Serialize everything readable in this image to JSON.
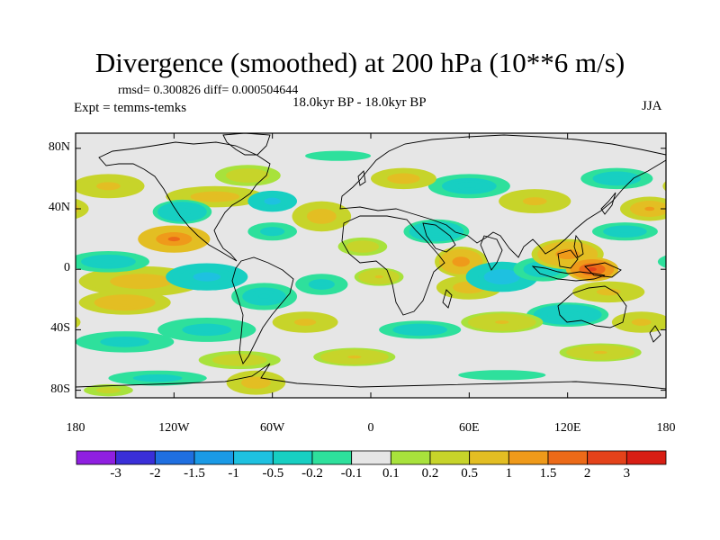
{
  "title": "Divergence (smoothed) at 200 hPa (10**6 m/s)",
  "stats": "rmsd= 0.300826 diff= 0.000504644",
  "experiment": "Expt = temms-temks",
  "period": "18.0kyr BP - 18.0kyr BP",
  "season": "JJA",
  "lat_labels": [
    {
      "label": "80N",
      "lat": 80
    },
    {
      "label": "40N",
      "lat": 40
    },
    {
      "label": "0",
      "lat": 0
    },
    {
      "label": "40S",
      "lat": -40
    },
    {
      "label": "80S",
      "lat": -80
    }
  ],
  "lon_labels": [
    {
      "label": "180",
      "lon": -180
    },
    {
      "label": "120W",
      "lon": -120
    },
    {
      "label": "60W",
      "lon": -60
    },
    {
      "label": "0",
      "lon": 0
    },
    {
      "label": "60E",
      "lon": 60
    },
    {
      "label": "120E",
      "lon": 120
    },
    {
      "label": "180",
      "lon": 180
    }
  ],
  "colorbar": {
    "colors": [
      "#8f1fe0",
      "#3a2fd8",
      "#1f6fe0",
      "#1a9ae6",
      "#1ec1e0",
      "#17cfc2",
      "#2ee09c",
      "#e6e6e6",
      "#a8e23c",
      "#c7d42a",
      "#e3be23",
      "#ef9a1a",
      "#ec6a18",
      "#e4421a",
      "#d81e14"
    ],
    "labels": [
      "-3",
      "-2",
      "-1.5",
      "-1",
      "-0.5",
      "-0.2",
      "-0.1",
      "0.1",
      "0.2",
      "0.5",
      "1",
      "1.5",
      "2",
      "3"
    ]
  },
  "field_blobs": [
    {
      "lon": -120,
      "lat": 20,
      "rx": 22,
      "ry": 9,
      "v": 1.6
    },
    {
      "lon": -140,
      "lat": -8,
      "rx": 38,
      "ry": 10,
      "v": 0.8
    },
    {
      "lon": -150,
      "lat": -22,
      "rx": 28,
      "ry": 8,
      "v": 0.9
    },
    {
      "lon": -100,
      "lat": -5,
      "rx": 25,
      "ry": 9,
      "v": -0.6
    },
    {
      "lon": -160,
      "lat": 5,
      "rx": 25,
      "ry": 7,
      "v": -0.4
    },
    {
      "lon": -95,
      "lat": 48,
      "rx": 30,
      "ry": 7,
      "v": 0.7
    },
    {
      "lon": -115,
      "lat": 38,
      "rx": 18,
      "ry": 8,
      "v": -0.5
    },
    {
      "lon": -160,
      "lat": 55,
      "rx": 22,
      "ry": 8,
      "v": 0.6
    },
    {
      "lon": -75,
      "lat": 62,
      "rx": 20,
      "ry": 7,
      "v": 0.4
    },
    {
      "lon": -60,
      "lat": 45,
      "rx": 15,
      "ry": 7,
      "v": -0.6
    },
    {
      "lon": -60,
      "lat": 25,
      "rx": 15,
      "ry": 6,
      "v": -0.3
    },
    {
      "lon": -30,
      "lat": 35,
      "rx": 18,
      "ry": 10,
      "v": 0.7
    },
    {
      "lon": -65,
      "lat": -18,
      "rx": 20,
      "ry": 9,
      "v": -0.4
    },
    {
      "lon": -30,
      "lat": -10,
      "rx": 16,
      "ry": 7,
      "v": -0.3
    },
    {
      "lon": -40,
      "lat": -35,
      "rx": 20,
      "ry": 7,
      "v": 0.6
    },
    {
      "lon": -100,
      "lat": -40,
      "rx": 30,
      "ry": 8,
      "v": -0.3
    },
    {
      "lon": -150,
      "lat": -48,
      "rx": 30,
      "ry": 7,
      "v": -0.3
    },
    {
      "lon": -80,
      "lat": -60,
      "rx": 25,
      "ry": 6,
      "v": 0.4
    },
    {
      "lon": -130,
      "lat": -72,
      "rx": 30,
      "ry": 5,
      "v": -0.3
    },
    {
      "lon": -70,
      "lat": -75,
      "rx": 18,
      "ry": 8,
      "v": 0.8
    },
    {
      "lon": -160,
      "lat": -80,
      "rx": 15,
      "ry": 4,
      "v": 0.3
    },
    {
      "lon": 5,
      "lat": -5,
      "rx": 15,
      "ry": 6,
      "v": 0.5
    },
    {
      "lon": 55,
      "lat": 5,
      "rx": 16,
      "ry": 10,
      "v": 1.3
    },
    {
      "lon": 60,
      "lat": -12,
      "rx": 20,
      "ry": 8,
      "v": 0.8
    },
    {
      "lon": 40,
      "lat": 25,
      "rx": 20,
      "ry": 8,
      "v": -0.5
    },
    {
      "lon": 80,
      "lat": -5,
      "rx": 22,
      "ry": 10,
      "v": -0.7
    },
    {
      "lon": 105,
      "lat": 0,
      "rx": 18,
      "ry": 8,
      "v": -0.4
    },
    {
      "lon": 120,
      "lat": 10,
      "rx": 22,
      "ry": 10,
      "v": 1.2
    },
    {
      "lon": 135,
      "lat": 0,
      "rx": 16,
      "ry": 8,
      "v": 2.1
    },
    {
      "lon": 145,
      "lat": -15,
      "rx": 22,
      "ry": 7,
      "v": 0.6
    },
    {
      "lon": 120,
      "lat": -30,
      "rx": 25,
      "ry": 8,
      "v": -0.5
    },
    {
      "lon": 80,
      "lat": -35,
      "rx": 25,
      "ry": 7,
      "v": 0.5
    },
    {
      "lon": 30,
      "lat": -40,
      "rx": 25,
      "ry": 6,
      "v": -0.4
    },
    {
      "lon": 100,
      "lat": 45,
      "rx": 22,
      "ry": 8,
      "v": 0.6
    },
    {
      "lon": 60,
      "lat": 55,
      "rx": 25,
      "ry": 8,
      "v": -0.4
    },
    {
      "lon": 20,
      "lat": 60,
      "rx": 20,
      "ry": 7,
      "v": 0.7
    },
    {
      "lon": 150,
      "lat": 60,
      "rx": 22,
      "ry": 7,
      "v": -0.4
    },
    {
      "lon": 170,
      "lat": 40,
      "rx": 18,
      "ry": 8,
      "v": 1.0
    },
    {
      "lon": 155,
      "lat": 25,
      "rx": 20,
      "ry": 6,
      "v": -0.4
    },
    {
      "lon": 165,
      "lat": -35,
      "rx": 18,
      "ry": 7,
      "v": 0.6
    },
    {
      "lon": 140,
      "lat": -55,
      "rx": 25,
      "ry": 6,
      "v": 0.5
    },
    {
      "lon": 80,
      "lat": -70,
      "rx": 40,
      "ry": 5,
      "v": -0.2
    },
    {
      "lon": -10,
      "lat": -58,
      "rx": 25,
      "ry": 6,
      "v": 0.5
    },
    {
      "lon": -5,
      "lat": 15,
      "rx": 15,
      "ry": 6,
      "v": 0.4
    },
    {
      "lon": -20,
      "lat": 75,
      "rx": 30,
      "ry": 5,
      "v": -0.2
    }
  ]
}
